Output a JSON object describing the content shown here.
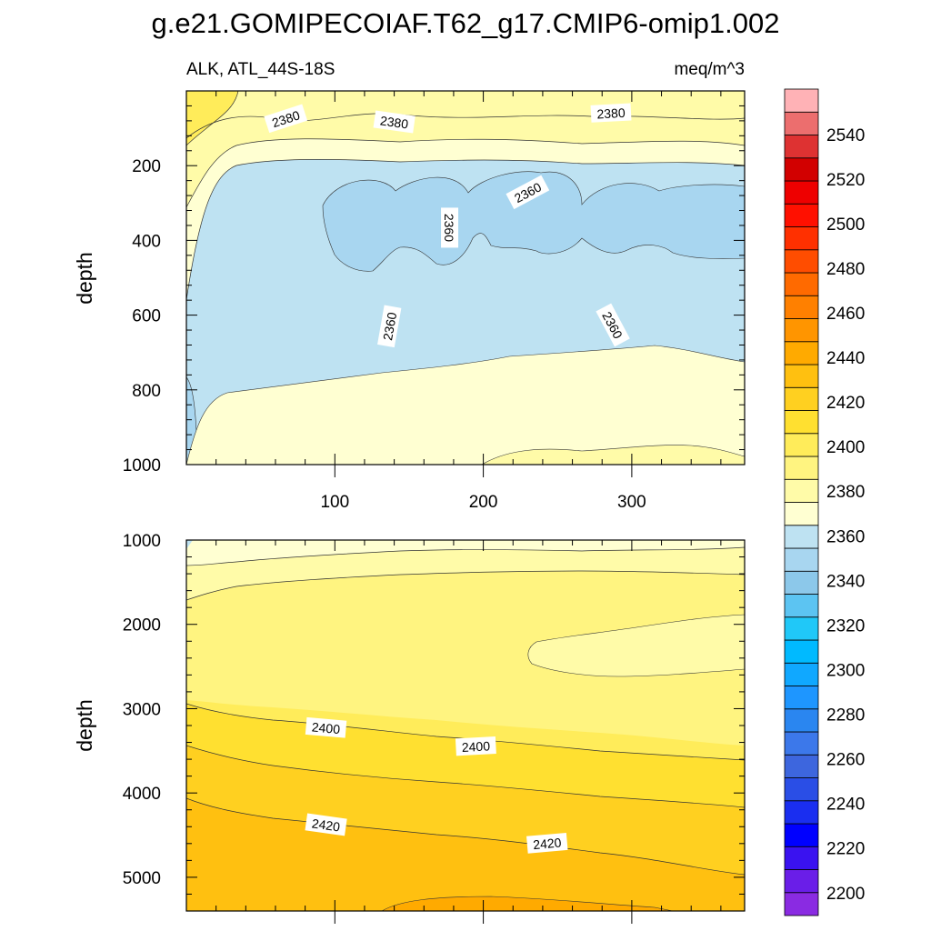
{
  "chart_data": {
    "type": "heatmap",
    "title": "g.e21.GOMIPECOIAF.T62_g17.CMIP6-omip1.002",
    "left_subtitle": "ALK, ATL_44S-18S",
    "right_subtitle": "meq/m^3",
    "xlim": [
      0,
      376
    ],
    "x_ticks": [
      "100",
      "200",
      "300"
    ],
    "colorbar": {
      "levels": [
        2200,
        2210,
        2220,
        2230,
        2240,
        2250,
        2260,
        2270,
        2280,
        2290,
        2300,
        2310,
        2320,
        2330,
        2340,
        2350,
        2360,
        2370,
        2380,
        2390,
        2400,
        2410,
        2420,
        2430,
        2440,
        2450,
        2460,
        2470,
        2480,
        2490,
        2500,
        2510,
        2520,
        2530,
        2540,
        2550
      ],
      "labels": [
        "2200",
        "2220",
        "2240",
        "2260",
        "2280",
        "2300",
        "2320",
        "2340",
        "2360",
        "2380",
        "2400",
        "2420",
        "2440",
        "2460",
        "2480",
        "2500",
        "2520",
        "2540"
      ],
      "colors": [
        "#8a2be2",
        "#6a1ee8",
        "#3a12f0",
        "#0000ff",
        "#1a2ef0",
        "#2a4ee6",
        "#3d66de",
        "#3c78ea",
        "#2a86f0",
        "#1e96ff",
        "#10a8ff",
        "#00baff",
        "#20c8f8",
        "#5cc4f2",
        "#8cc8ea",
        "#a8d6f0",
        "#bee2f2",
        "#ffffd2",
        "#fffba8",
        "#fff480",
        "#ffec5a",
        "#ffe030",
        "#ffd020",
        "#ffc010",
        "#ffaa00",
        "#ff9500",
        "#ff8000",
        "#ff6a00",
        "#ff4d00",
        "#ff3000",
        "#ff1000",
        "#ee0000",
        "#d20000",
        "#de3232",
        "#ec6e6e",
        "#ffb2b6"
      ]
    },
    "panels": [
      {
        "name": "upper",
        "ylabel": "depth",
        "ylim": [
          0,
          1000
        ],
        "y_ticks": [
          "200",
          "400",
          "600",
          "800",
          "1000"
        ],
        "contour_labels": [
          {
            "text": "2380",
            "x": 67,
            "y": 75,
            "angle": -18
          },
          {
            "text": "2380",
            "x": 140,
            "y": 84,
            "angle": 8
          },
          {
            "text": "2380",
            "x": 286,
            "y": 60,
            "angle": -3
          },
          {
            "text": "2360",
            "x": 230,
            "y": 272,
            "angle": -28
          },
          {
            "text": "2360",
            "x": 177,
            "y": 366,
            "angle": 90
          },
          {
            "text": "2360",
            "x": 137,
            "y": 630,
            "angle": -80
          },
          {
            "text": "2360",
            "x": 287,
            "y": 627,
            "angle": 62
          }
        ]
      },
      {
        "name": "lower",
        "ylabel": "depth",
        "ylim": [
          1000,
          5400
        ],
        "y_ticks": [
          "1000",
          "2000",
          "3000",
          "4000",
          "5000"
        ],
        "contour_labels": [
          {
            "text": "2400",
            "x": 94,
            "y": 3230,
            "angle": 5
          },
          {
            "text": "2400",
            "x": 195,
            "y": 3450,
            "angle": -3
          },
          {
            "text": "2420",
            "x": 94,
            "y": 4380,
            "angle": 8
          },
          {
            "text": "2420",
            "x": 243,
            "y": 4600,
            "angle": -5
          }
        ]
      }
    ]
  }
}
